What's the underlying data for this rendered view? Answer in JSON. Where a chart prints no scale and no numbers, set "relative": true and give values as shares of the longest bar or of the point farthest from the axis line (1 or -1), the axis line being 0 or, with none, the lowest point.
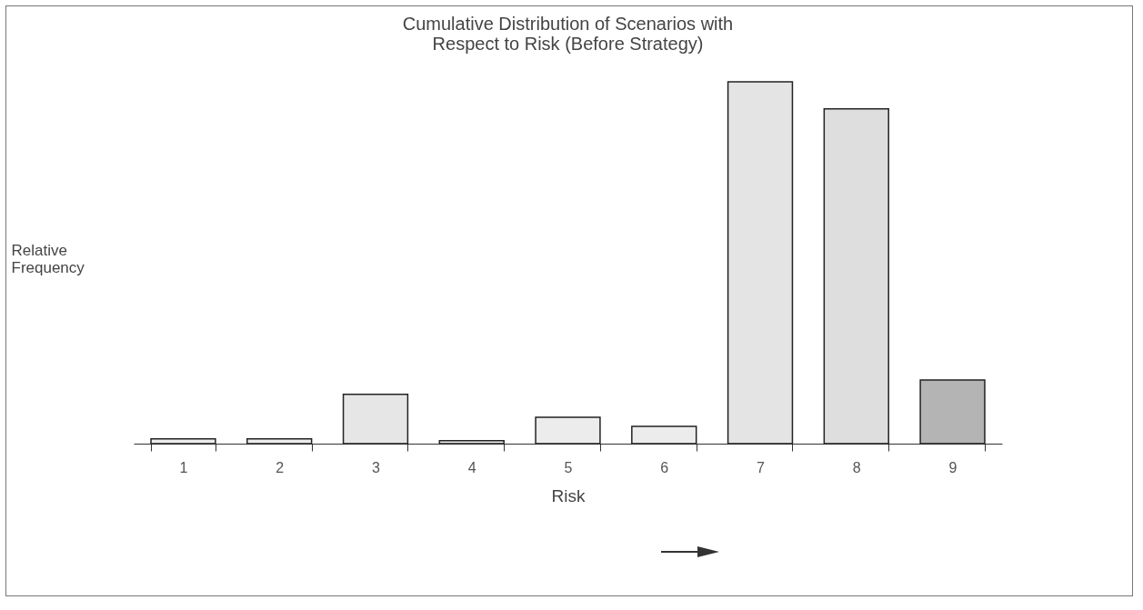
{
  "chart_data": {
    "type": "bar",
    "relative": true,
    "title": "Cumulative Distribution of Scenarios with\nRespect to Risk (Before Strategy)",
    "xlabel": "Risk",
    "ylabel": "Relative\nFrequency",
    "categories": [
      "1",
      "2",
      "3",
      "4",
      "5",
      "6",
      "7",
      "8",
      "9"
    ],
    "values": [
      0.013,
      0.013,
      0.136,
      0.008,
      0.073,
      0.048,
      1,
      0.925,
      0.176
    ],
    "colors": [
      "#ececec",
      "#ececec",
      "#e6e6e6",
      "#ececec",
      "#ececec",
      "#ececec",
      "#e4e4e4",
      "#dedede",
      "#b4b4b4"
    ],
    "grid": false,
    "legend": false
  }
}
